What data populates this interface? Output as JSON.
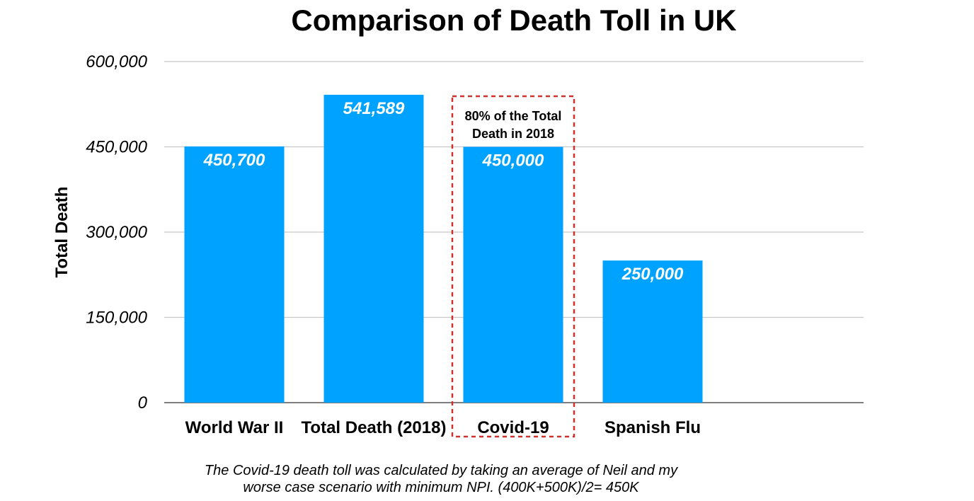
{
  "chart_data": {
    "type": "bar",
    "title": "Comparison of Death Toll in UK",
    "ylabel": "Total Death",
    "xlabel": "",
    "ylim": [
      0,
      600000
    ],
    "yticks": [
      0,
      150000,
      300000,
      450000,
      600000
    ],
    "ytick_labels": [
      "0",
      "150,000",
      "300,000",
      "450,000",
      "600,000"
    ],
    "categories": [
      "World War II",
      "Total Death (2018)",
      "Covid-19",
      "Spanish Flu"
    ],
    "values": [
      450700,
      541589,
      450000,
      250000
    ],
    "data_labels": [
      "450,700",
      "541,589",
      "450,000",
      "250,000"
    ],
    "grid": true,
    "legend": "none",
    "bar_color": "#00A2FF",
    "highlight": {
      "category": "Covid-19",
      "style": "dashed box",
      "color": "#D0312D",
      "annotation_lines": [
        "80% of the Total",
        "Death in 2018"
      ]
    },
    "note_lines": [
      "The Covid-19 death toll was calculated by taking an average of Neil and my",
      "worse case scenario with minimum NPI. (400K+500K)/2= 450K"
    ]
  }
}
